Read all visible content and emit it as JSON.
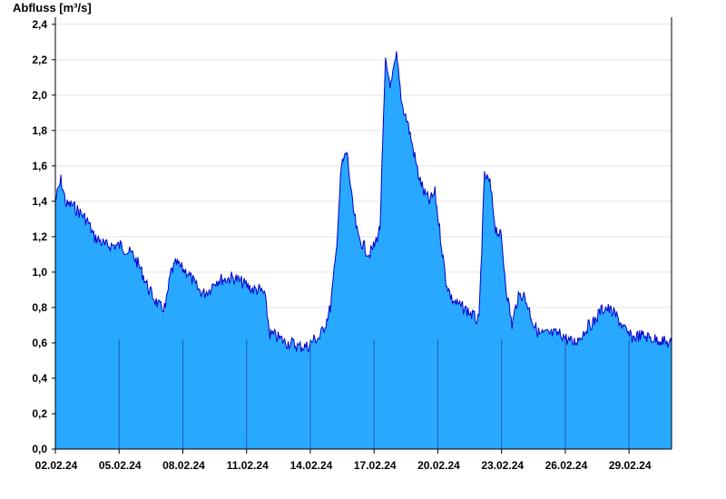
{
  "chart_data": {
    "type": "area",
    "title": "",
    "xlabel": "",
    "ylabel": "Abfluss [m³/s]",
    "ylim": [
      0,
      2.44
    ],
    "xlim_days": [
      0,
      29
    ],
    "yticks": [
      "0,0",
      "0,2",
      "0,4",
      "0,6",
      "0,8",
      "1,0",
      "1,2",
      "1,4",
      "1,6",
      "1,8",
      "2,0",
      "2,2",
      "2,4"
    ],
    "ytick_values": [
      0,
      0.2,
      0.4,
      0.6,
      0.8,
      1.0,
      1.2,
      1.4,
      1.6,
      1.8,
      2.0,
      2.2,
      2.4
    ],
    "xticks": [
      "02.02.24",
      "05.02.24",
      "08.02.24",
      "11.02.24",
      "14.02.24",
      "17.02.24",
      "20.02.24",
      "23.02.24",
      "26.02.24",
      "29.02.24"
    ],
    "xtick_days": [
      0,
      3,
      6,
      9,
      12,
      15,
      18,
      21,
      24,
      27
    ],
    "grid": "horizontal",
    "colors": {
      "fill": "#29a8ff",
      "line": "#0000cc",
      "grid": "#e4e4e4",
      "axis": "#000000",
      "vline": "#1f5fb0"
    },
    "series": [
      {
        "x": [
          "02.02.24",
          "02.02.24",
          "02.02.24",
          "02.02.24",
          "03.02.24",
          "03.02.24",
          "03.02.24",
          "03.02.24",
          "04.02.24",
          "04.02.24",
          "04.02.24",
          "04.02.24",
          "05.02.24",
          "05.02.24",
          "05.02.24",
          "05.02.24",
          "06.02.24",
          "06.02.24",
          "06.02.24",
          "06.02.24",
          "07.02.24",
          "07.02.24",
          "07.02.24",
          "07.02.24",
          "08.02.24",
          "08.02.24",
          "08.02.24",
          "08.02.24",
          "09.02.24",
          "09.02.24",
          "09.02.24",
          "09.02.24",
          "10.02.24",
          "10.02.24",
          "10.02.24",
          "10.02.24",
          "11.02.24",
          "11.02.24",
          "11.02.24",
          "11.02.24",
          "12.02.24",
          "12.02.24",
          "12.02.24",
          "12.02.24",
          "13.02.24",
          "13.02.24",
          "13.02.24",
          "13.02.24",
          "14.02.24",
          "14.02.24",
          "14.02.24",
          "14.02.24",
          "15.02.24",
          "15.02.24",
          "15.02.24",
          "15.02.24",
          "16.02.24",
          "16.02.24",
          "16.02.24",
          "16.02.24",
          "17.02.24",
          "17.02.24",
          "17.02.24",
          "17.02.24",
          "18.02.24",
          "18.02.24",
          "18.02.24",
          "18.02.24",
          "19.02.24",
          "19.02.24",
          "19.02.24",
          "19.02.24",
          "20.02.24",
          "20.02.24",
          "20.02.24",
          "20.02.24",
          "21.02.24",
          "21.02.24",
          "21.02.24",
          "21.02.24",
          "22.02.24",
          "22.02.24",
          "22.02.24",
          "22.02.24",
          "23.02.24",
          "23.02.24",
          "23.02.24",
          "23.02.24",
          "24.02.24",
          "24.02.24",
          "24.02.24",
          "24.02.24",
          "25.02.24",
          "25.02.24",
          "25.02.24",
          "25.02.24",
          "26.02.24",
          "26.02.24",
          "26.02.24",
          "26.02.24",
          "27.02.24",
          "27.02.24",
          "27.02.24",
          "27.02.24",
          "28.02.24",
          "28.02.24",
          "28.02.24",
          "28.02.24",
          "29.02.24",
          "29.02.24",
          "29.02.24",
          "29.02.24",
          "01.03.24"
        ],
        "y": [
          1.4,
          1.52,
          1.38,
          1.38,
          1.35,
          1.32,
          1.28,
          1.2,
          1.18,
          1.15,
          1.15,
          1.15,
          1.15,
          1.12,
          1.1,
          1.05,
          0.98,
          0.9,
          0.85,
          0.8,
          0.8,
          1.0,
          1.05,
          1.02,
          1.0,
          0.95,
          0.9,
          0.88,
          0.9,
          0.95,
          0.96,
          0.96,
          0.97,
          0.96,
          0.94,
          0.92,
          0.9,
          0.9,
          0.88,
          0.65,
          0.64,
          0.62,
          0.6,
          0.6,
          0.58,
          0.58,
          0.58,
          0.62,
          0.63,
          0.7,
          0.8,
          1.1,
          1.6,
          1.68,
          1.38,
          1.2,
          1.15,
          1.1,
          1.15,
          1.25,
          2.18,
          2.05,
          2.22,
          1.95,
          1.85,
          1.7,
          1.55,
          1.45,
          1.4,
          1.45,
          1.2,
          0.95,
          0.85,
          0.82,
          0.8,
          0.78,
          0.75,
          0.72,
          1.55,
          1.5,
          1.25,
          1.2,
          0.9,
          0.7,
          0.85,
          0.88,
          0.8,
          0.7,
          0.65,
          0.65,
          0.65,
          0.65,
          0.65,
          0.62,
          0.6,
          0.62,
          0.66,
          0.7,
          0.72,
          0.78,
          0.8,
          0.78,
          0.75,
          0.7,
          0.65,
          0.63,
          0.64,
          0.64,
          0.63,
          0.62,
          0.62,
          0.6,
          0.6
        ]
      }
    ]
  }
}
